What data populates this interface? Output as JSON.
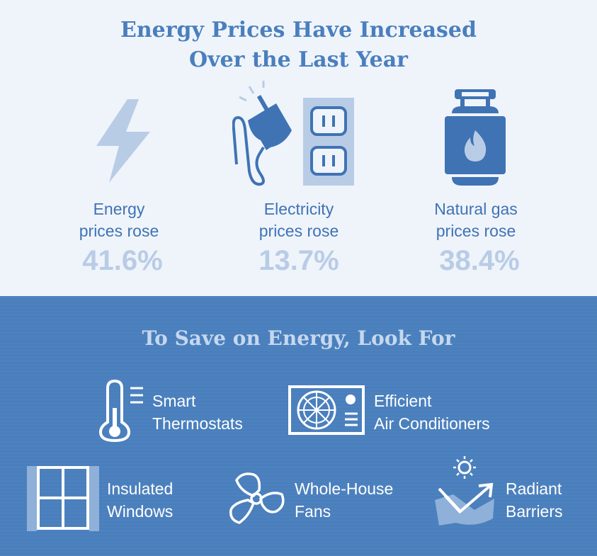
{
  "header": {
    "title_line1": "Energy Prices Have Increased",
    "title_line2": "Over the Last Year"
  },
  "stats": [
    {
      "line1": "Energy",
      "line2": "prices rose",
      "value": "41.6%",
      "icon": "lightning-bolt-icon"
    },
    {
      "line1": "Electricity",
      "line2": "prices rose",
      "value": "13.7%",
      "icon": "plug-outlet-icon"
    },
    {
      "line1": "Natural gas",
      "line2": "prices rose",
      "value": "38.4%",
      "icon": "gas-tank-icon"
    }
  ],
  "savings": {
    "title": "To Save on Energy, Look For",
    "items": [
      {
        "line1": "Smart",
        "line2": "Thermostats",
        "icon": "thermometer-icon"
      },
      {
        "line1": "Efficient",
        "line2": "Air Conditioners",
        "icon": "air-conditioner-icon"
      },
      {
        "line1": "Insulated",
        "line2": "Windows",
        "icon": "window-icon"
      },
      {
        "line1": "Whole-House",
        "line2": "Fans",
        "icon": "fan-icon"
      },
      {
        "line1": "Radiant",
        "line2": "Barriers",
        "icon": "radiant-barrier-icon"
      }
    ]
  },
  "colors": {
    "top_background": "#eff4fb",
    "bottom_background": "#4a7fbd",
    "primary_blue": "#3f73b4",
    "light_blue": "#b9cce6"
  }
}
